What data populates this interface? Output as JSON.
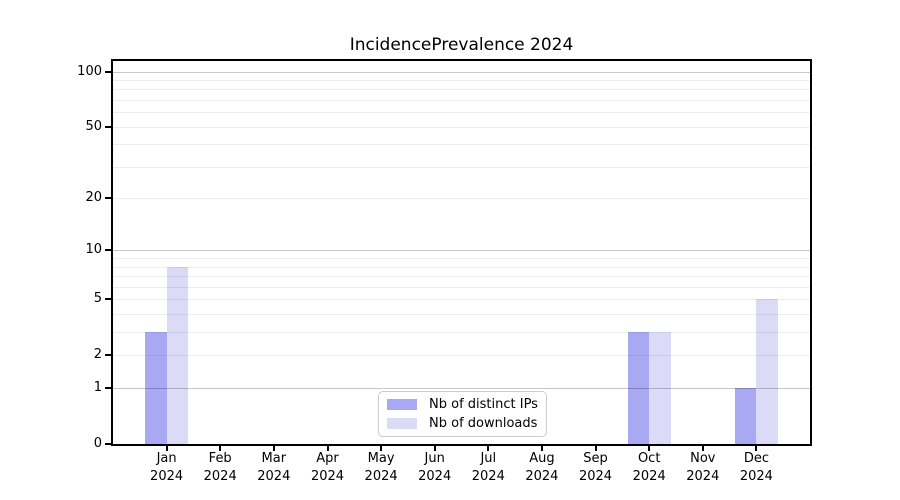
{
  "title": "IncidencePrevalence 2024",
  "legend": {
    "items": [
      {
        "label": "Nb of distinct IPs",
        "color": "#a9a9f3"
      },
      {
        "label": "Nb of downloads",
        "color": "#dbdbf8"
      }
    ]
  },
  "chart_data": {
    "type": "bar",
    "title": "IncidencePrevalence 2024",
    "categories": [
      "Jan 2024",
      "Feb 2024",
      "Mar 2024",
      "Apr 2024",
      "May 2024",
      "Jun 2024",
      "Jul 2024",
      "Aug 2024",
      "Sep 2024",
      "Oct 2024",
      "Nov 2024",
      "Dec 2024"
    ],
    "series": [
      {
        "name": "Nb of distinct IPs",
        "color": "#a9a9f3",
        "values": [
          3,
          0,
          0,
          0,
          0,
          0,
          0,
          0,
          0,
          3,
          0,
          1
        ]
      },
      {
        "name": "Nb of downloads",
        "color": "#dbdbf8",
        "values": [
          8,
          0,
          0,
          0,
          0,
          0,
          0,
          0,
          0,
          3,
          0,
          5
        ]
      }
    ],
    "xlabel": "",
    "ylabel": "",
    "y_scale": "log1p",
    "ylim": [
      0,
      114
    ],
    "y_ticks": [
      0,
      1,
      2,
      5,
      10,
      20,
      50,
      100
    ],
    "grid_minor": [
      2,
      3,
      4,
      5,
      6,
      7,
      8,
      9,
      20,
      30,
      40,
      50,
      60,
      70,
      80,
      90
    ],
    "grid_major": [
      1,
      10,
      100
    ],
    "grid": "horizontal",
    "legend_position": "lower center"
  }
}
